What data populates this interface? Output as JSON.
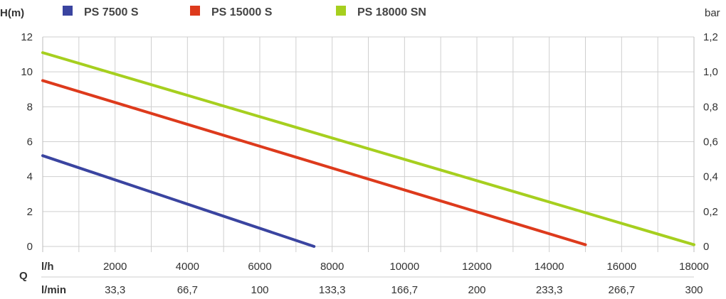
{
  "chart_data": {
    "type": "line",
    "legend_position": "top",
    "grid": true,
    "y_left_label": "H(m)",
    "y_right_label": "bar",
    "x_axis_symbol": "Q",
    "x_primary_unit": "l/h",
    "x_secondary_unit": "l/min",
    "xlim": [
      0,
      18000
    ],
    "ylim": [
      0,
      12
    ],
    "y_ticks": [
      "0",
      "2",
      "4",
      "6",
      "8",
      "10",
      "12"
    ],
    "y_right_ticks": [
      "0",
      "0,2",
      "0,4",
      "0,6",
      "0,8",
      "1,0",
      "1,2"
    ],
    "x_ticks_lh": [
      "2000",
      "4000",
      "6000",
      "8000",
      "10000",
      "12000",
      "14000",
      "16000",
      "18000"
    ],
    "x_ticks_lmin": [
      "33,3",
      "66,7",
      "100",
      "133,3",
      "166,7",
      "200",
      "233,3",
      "266,7",
      "300"
    ],
    "series": [
      {
        "name": "PS 7500 S",
        "color": "#3a44a0",
        "points": [
          [
            0,
            5.2
          ],
          [
            7500,
            0
          ]
        ]
      },
      {
        "name": "PS 15000 S",
        "color": "#dd3a1c",
        "points": [
          [
            0,
            9.5
          ],
          [
            15000,
            0.1
          ]
        ]
      },
      {
        "name": "PS 18000 SN",
        "color": "#a6cf1f",
        "points": [
          [
            0,
            11.1
          ],
          [
            18000,
            0.1
          ]
        ]
      }
    ]
  }
}
